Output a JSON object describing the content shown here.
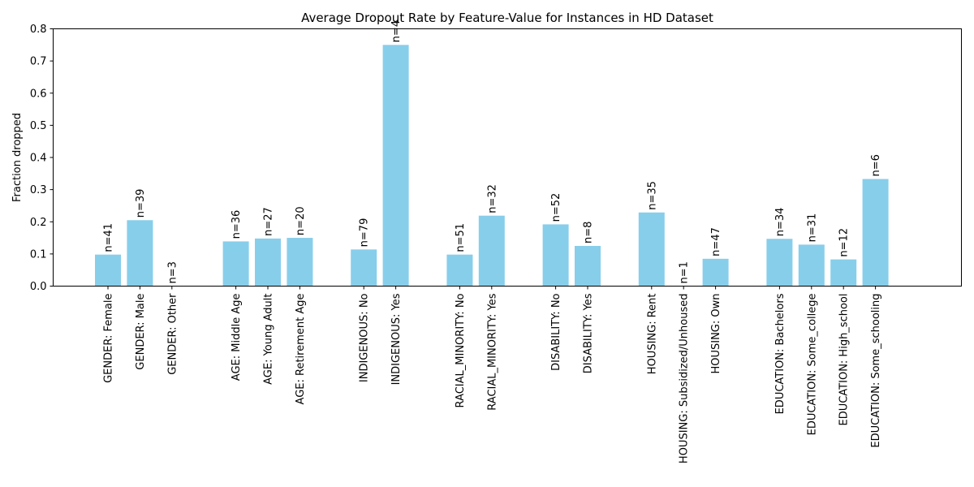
{
  "chart_data": {
    "type": "bar",
    "title": "Average Dropout Rate by Feature-Value for Instances in HD Dataset",
    "xlabel": "",
    "ylabel": "Fraction dropped",
    "ylim": [
      0,
      0.8
    ],
    "yticks": [
      "0.0",
      "0.1",
      "0.2",
      "0.3",
      "0.4",
      "0.5",
      "0.6",
      "0.7",
      "0.8"
    ],
    "bar_color": "#87CEEB",
    "grid": false,
    "groups": [
      {
        "feature": "GENDER",
        "bars": [
          {
            "label": "GENDER: Female",
            "value": 0.098,
            "count": "n=41"
          },
          {
            "label": "GENDER: Male",
            "value": 0.205,
            "count": "n=39"
          },
          {
            "label": "GENDER: Other",
            "value": 0.0,
            "count": "n=3"
          }
        ]
      },
      {
        "feature": "AGE",
        "bars": [
          {
            "label": "AGE: Middle Age",
            "value": 0.139,
            "count": "n=36"
          },
          {
            "label": "AGE: Young Adult",
            "value": 0.148,
            "count": "n=27"
          },
          {
            "label": "AGE: Retirement Age",
            "value": 0.15,
            "count": "n=20"
          }
        ]
      },
      {
        "feature": "INDIGENOUS",
        "bars": [
          {
            "label": "INDIGENOUS: No",
            "value": 0.114,
            "count": "n=79"
          },
          {
            "label": "INDIGENOUS: Yes",
            "value": 0.75,
            "count": "n=4"
          }
        ]
      },
      {
        "feature": "RACIAL_MINORITY",
        "bars": [
          {
            "label": "RACIAL_MINORITY: No",
            "value": 0.098,
            "count": "n=51"
          },
          {
            "label": "RACIAL_MINORITY: Yes",
            "value": 0.219,
            "count": "n=32"
          }
        ]
      },
      {
        "feature": "DISABILITY",
        "bars": [
          {
            "label": "DISABILITY: No",
            "value": 0.192,
            "count": "n=52"
          },
          {
            "label": "DISABILITY: Yes",
            "value": 0.125,
            "count": "n=8"
          }
        ]
      },
      {
        "feature": "HOUSING",
        "bars": [
          {
            "label": "HOUSING: Rent",
            "value": 0.229,
            "count": "n=35"
          },
          {
            "label": "HOUSING: Subsidized/Unhoused",
            "value": 0.0,
            "count": "n=1"
          },
          {
            "label": "HOUSING: Own",
            "value": 0.085,
            "count": "n=47"
          }
        ]
      },
      {
        "feature": "EDUCATION",
        "bars": [
          {
            "label": "EDUCATION: Bachelors",
            "value": 0.147,
            "count": "n=34"
          },
          {
            "label": "EDUCATION: Some_college",
            "value": 0.129,
            "count": "n=31"
          },
          {
            "label": "EDUCATION: High_school",
            "value": 0.083,
            "count": "n=12"
          },
          {
            "label": "EDUCATION: Some_schooling",
            "value": 0.333,
            "count": "n=6"
          }
        ]
      }
    ]
  }
}
